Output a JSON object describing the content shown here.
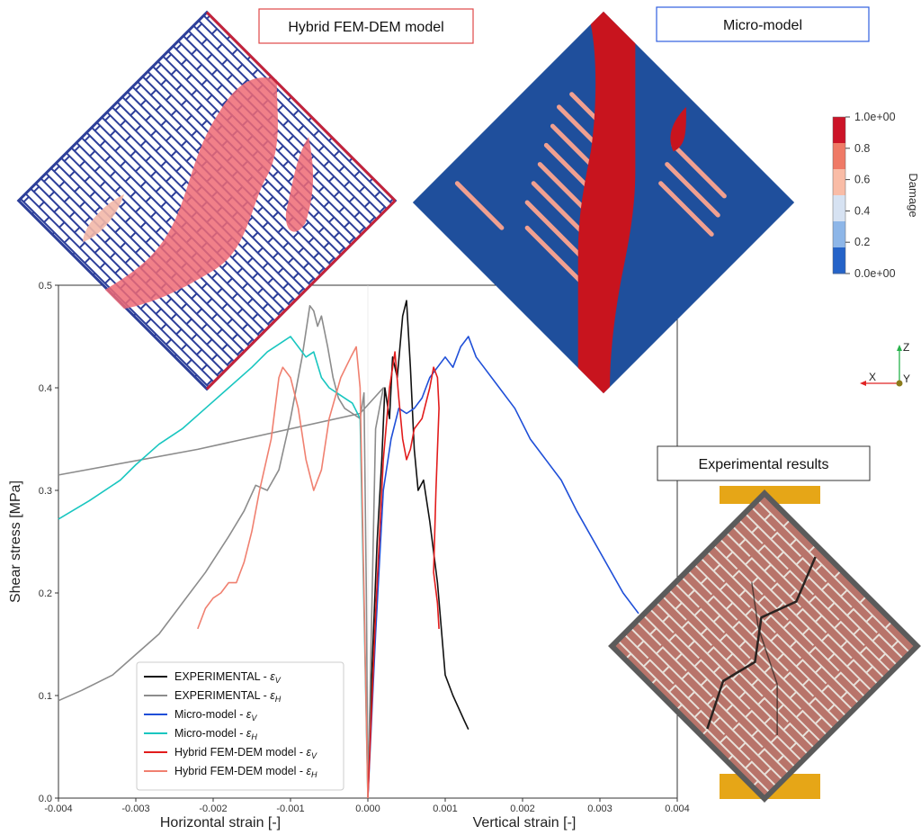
{
  "labels": {
    "hybrid_box": "Hybrid FEM-DEM model",
    "micro_box": "Micro-model",
    "experimental_box": "Experimental results"
  },
  "colorbar": {
    "title": "Damage",
    "ticks": [
      "1.0e+00",
      "0.8",
      "0.6",
      "0.4",
      "0.2",
      "0.0e+00"
    ],
    "colors": [
      "#cc1428",
      "#ef7a66",
      "#f9bca6",
      "#d6e2f2",
      "#8db6e8",
      "#2563c8"
    ]
  },
  "triad": {
    "z": "Z",
    "x": "X",
    "y": "Y"
  },
  "chart_data": {
    "type": "line",
    "ylabel": "Shear stress [MPa]",
    "xlabel_left": "Horizontal strain [-]",
    "xlabel_right": "Vertical strain [-]",
    "xlim": [
      -0.004,
      0.004
    ],
    "ylim": [
      0.0,
      0.5
    ],
    "xticks": [
      "-0.004",
      "-0.003",
      "-0.002",
      "-0.001",
      "0.000",
      "0.001",
      "0.002",
      "0.003",
      "0.004"
    ],
    "yticks": [
      "0.0",
      "0.1",
      "0.2",
      "0.3",
      "0.4",
      "0.5"
    ],
    "legend_position": "bottom-left",
    "series": [
      {
        "name": "EXPERIMENTAL - ε_V",
        "label_main": "EXPERIMENTAL - ",
        "label_sub": "V",
        "color": "#111111",
        "points": [
          [
            0,
            0
          ],
          [
            5e-05,
            0.12
          ],
          [
            0.00012,
            0.25
          ],
          [
            0.00018,
            0.33
          ],
          [
            0.00022,
            0.4
          ],
          [
            0.00028,
            0.37
          ],
          [
            0.00032,
            0.43
          ],
          [
            0.00038,
            0.41
          ],
          [
            0.00045,
            0.47
          ],
          [
            0.0005,
            0.485
          ],
          [
            0.00055,
            0.42
          ],
          [
            0.0006,
            0.34
          ],
          [
            0.00065,
            0.3
          ],
          [
            0.00072,
            0.31
          ],
          [
            0.0008,
            0.27
          ],
          [
            0.0009,
            0.21
          ],
          [
            0.001,
            0.12
          ],
          [
            0.0011,
            0.1
          ],
          [
            0.00125,
            0.075
          ],
          [
            0.0013,
            0.067
          ]
        ]
      },
      {
        "name": "EXPERIMENTAL - ε_H",
        "label_main": "EXPERIMENTAL - ",
        "label_sub": "H",
        "color": "#8c8c8c",
        "points": [
          [
            -0.004,
            0.095
          ],
          [
            -0.0037,
            0.105
          ],
          [
            -0.0033,
            0.12
          ],
          [
            -0.003,
            0.14
          ],
          [
            -0.0027,
            0.16
          ],
          [
            -0.0024,
            0.19
          ],
          [
            -0.0021,
            0.22
          ],
          [
            -0.0018,
            0.255
          ],
          [
            -0.0016,
            0.28
          ],
          [
            -0.00145,
            0.305
          ],
          [
            -0.0013,
            0.3
          ],
          [
            -0.00115,
            0.32
          ],
          [
            -0.001,
            0.37
          ],
          [
            -0.00085,
            0.43
          ],
          [
            -0.00075,
            0.48
          ],
          [
            -0.0007,
            0.475
          ],
          [
            -0.00065,
            0.46
          ],
          [
            -0.0006,
            0.47
          ],
          [
            -0.00052,
            0.44
          ],
          [
            -0.00045,
            0.41
          ],
          [
            -0.00038,
            0.39
          ],
          [
            -0.0003,
            0.38
          ],
          [
            -0.0002,
            0.375
          ],
          [
            -0.0001,
            0.37
          ],
          [
            -5e-05,
            0.395
          ],
          [
            -2e-05,
            0.2
          ],
          [
            0,
            0
          ],
          [
            0.0001,
            0.36
          ],
          [
            0.0002,
            0.4
          ],
          [
            -0.0001,
            0.375
          ],
          [
            -0.0022,
            0.34
          ],
          [
            -0.004,
            0.315
          ]
        ]
      },
      {
        "name": "Micro-model - ε_V",
        "label_main": "Micro-model - ",
        "label_sub": "V",
        "color": "#1f4fd8",
        "points": [
          [
            0,
            0
          ],
          [
            0.0001,
            0.16
          ],
          [
            0.0002,
            0.3
          ],
          [
            0.0003,
            0.35
          ],
          [
            0.0004,
            0.38
          ],
          [
            0.0005,
            0.375
          ],
          [
            0.0006,
            0.38
          ],
          [
            0.0007,
            0.39
          ],
          [
            0.0008,
            0.41
          ],
          [
            0.0009,
            0.42
          ],
          [
            0.001,
            0.43
          ],
          [
            0.0011,
            0.42
          ],
          [
            0.0012,
            0.44
          ],
          [
            0.0013,
            0.45
          ],
          [
            0.0014,
            0.43
          ],
          [
            0.0015,
            0.42
          ],
          [
            0.0017,
            0.4
          ],
          [
            0.0019,
            0.38
          ],
          [
            0.0021,
            0.35
          ],
          [
            0.0023,
            0.33
          ],
          [
            0.0025,
            0.31
          ],
          [
            0.0027,
            0.28
          ],
          [
            0.003,
            0.24
          ],
          [
            0.0033,
            0.2
          ],
          [
            0.0035,
            0.18
          ]
        ]
      },
      {
        "name": "Micro-model - ε_H",
        "label_main": "Micro-model - ",
        "label_sub": "H",
        "color": "#19c6c0",
        "points": [
          [
            -0.004,
            0.272
          ],
          [
            -0.0036,
            0.29
          ],
          [
            -0.0032,
            0.31
          ],
          [
            -0.003,
            0.325
          ],
          [
            -0.0027,
            0.345
          ],
          [
            -0.0024,
            0.36
          ],
          [
            -0.0021,
            0.38
          ],
          [
            -0.0018,
            0.4
          ],
          [
            -0.0015,
            0.42
          ],
          [
            -0.0013,
            0.435
          ],
          [
            -0.0011,
            0.445
          ],
          [
            -0.001,
            0.45
          ],
          [
            -0.0009,
            0.44
          ],
          [
            -0.0008,
            0.43
          ],
          [
            -0.0007,
            0.435
          ],
          [
            -0.0006,
            0.41
          ],
          [
            -0.0005,
            0.4
          ],
          [
            -0.0004,
            0.395
          ],
          [
            -0.0003,
            0.39
          ],
          [
            -0.0002,
            0.385
          ],
          [
            -0.0001,
            0.37
          ],
          [
            0,
            0
          ]
        ]
      },
      {
        "name": "Hybrid FEM-DEM model - ε_V",
        "label_main": "Hybrid FEM-DEM model - ",
        "label_sub": "V",
        "color": "#e21c1c",
        "points": [
          [
            0,
            0
          ],
          [
            0.0001,
            0.18
          ],
          [
            0.0002,
            0.33
          ],
          [
            0.00028,
            0.4
          ],
          [
            0.00035,
            0.435
          ],
          [
            0.0004,
            0.39
          ],
          [
            0.00045,
            0.35
          ],
          [
            0.0005,
            0.33
          ],
          [
            0.00055,
            0.34
          ],
          [
            0.0006,
            0.36
          ],
          [
            0.0007,
            0.37
          ],
          [
            0.0008,
            0.4
          ],
          [
            0.00085,
            0.42
          ],
          [
            0.0009,
            0.41
          ],
          [
            0.00092,
            0.38
          ],
          [
            0.00088,
            0.3
          ],
          [
            0.00085,
            0.22
          ],
          [
            0.0009,
            0.19
          ],
          [
            0.00092,
            0.165
          ]
        ]
      },
      {
        "name": "Hybrid FEM-DEM model - ε_H",
        "label_main": "Hybrid FEM-DEM model - ",
        "label_sub": "H",
        "color": "#f08070",
        "points": [
          [
            -0.0022,
            0.165
          ],
          [
            -0.0021,
            0.185
          ],
          [
            -0.002,
            0.195
          ],
          [
            -0.0019,
            0.2
          ],
          [
            -0.0018,
            0.21
          ],
          [
            -0.0017,
            0.21
          ],
          [
            -0.0016,
            0.23
          ],
          [
            -0.0015,
            0.26
          ],
          [
            -0.0014,
            0.3
          ],
          [
            -0.00125,
            0.35
          ],
          [
            -0.00115,
            0.41
          ],
          [
            -0.0011,
            0.42
          ],
          [
            -0.001,
            0.41
          ],
          [
            -0.0009,
            0.38
          ],
          [
            -0.0008,
            0.33
          ],
          [
            -0.0007,
            0.3
          ],
          [
            -0.0006,
            0.32
          ],
          [
            -0.0005,
            0.37
          ],
          [
            -0.00035,
            0.41
          ],
          [
            -0.00022,
            0.43
          ],
          [
            -0.00015,
            0.44
          ],
          [
            -0.0001,
            0.4
          ],
          [
            -5e-05,
            0.2
          ],
          [
            0,
            0
          ]
        ]
      }
    ]
  }
}
